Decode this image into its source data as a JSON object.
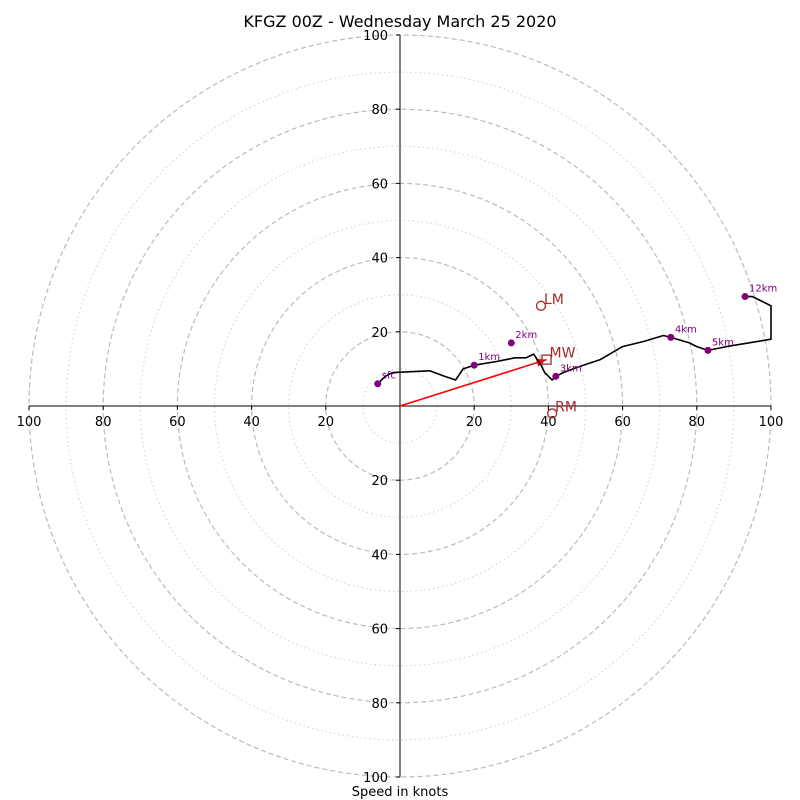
{
  "chart_data": {
    "type": "line",
    "title": "KFGZ 00Z - Wednesday March 25 2020",
    "xlabel": "Speed in knots",
    "ylabel": "",
    "xlim": [
      -100,
      100
    ],
    "ylim": [
      -100,
      100
    ],
    "ring_step_major": 20,
    "ring_step_minor": 10,
    "tick_labels": [
      "100",
      "80",
      "60",
      "40",
      "20",
      "20",
      "40",
      "60",
      "80",
      "100"
    ],
    "x_ticks": [
      -100,
      -80,
      -60,
      -40,
      -20,
      20,
      40,
      60,
      80,
      100
    ],
    "y_ticks": [
      100,
      80,
      60,
      40,
      20,
      -20,
      -40,
      -60,
      -80,
      -100
    ],
    "hodograph": {
      "x": [
        -6,
        -4,
        -2,
        8,
        12,
        15,
        17,
        20,
        26,
        31,
        34,
        36,
        38,
        39,
        41,
        42,
        44,
        48,
        54,
        60,
        66,
        71,
        73,
        78,
        80,
        83,
        88,
        100,
        100,
        100,
        98,
        95,
        93
      ],
      "y": [
        6,
        8,
        9,
        9.5,
        8,
        7,
        10,
        11,
        12,
        13,
        13,
        14,
        11,
        9,
        7,
        8,
        9,
        10.5,
        12.5,
        16,
        17.5,
        19,
        18.5,
        17,
        16,
        15,
        16,
        18,
        20,
        27,
        28,
        29.5,
        29.5
      ]
    },
    "height_markers": [
      {
        "label": "sfc",
        "x": -6,
        "y": 6
      },
      {
        "label": "1km",
        "x": 20,
        "y": 11
      },
      {
        "label": "2km",
        "x": 30,
        "y": 17
      },
      {
        "label": "3km",
        "x": 42,
        "y": 8
      },
      {
        "label": "4km",
        "x": 73,
        "y": 18.5
      },
      {
        "label": "5km",
        "x": 83,
        "y": 15
      },
      {
        "label": "12km",
        "x": 93,
        "y": 29.5
      }
    ],
    "storm_motions": [
      {
        "label": "LM",
        "x": 38,
        "y": 27,
        "marker": "circle"
      },
      {
        "label": "MW",
        "x": 39.5,
        "y": 12.5,
        "marker": "square"
      },
      {
        "label": "RM",
        "x": 41,
        "y": -2,
        "marker": "circle"
      }
    ],
    "shear_vector": {
      "from": [
        0,
        0
      ],
      "to": [
        39.5,
        12.5
      ]
    },
    "colors": {
      "hodograph": "#000000",
      "markers": "#800080",
      "storm_motion": "#a52a2a",
      "shear_vector": "#ff0000",
      "grid": "#bbbbbb",
      "axes": "#000000"
    }
  }
}
